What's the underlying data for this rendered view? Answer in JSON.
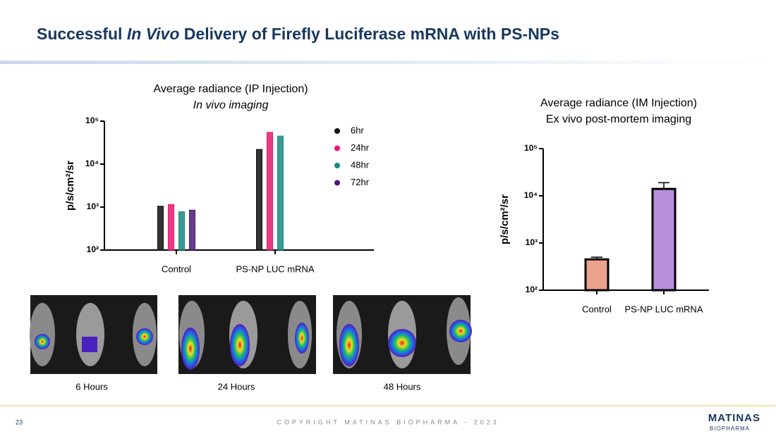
{
  "slide": {
    "title_parts": [
      "Successful ",
      "In Vivo",
      " Delivery of Firefly Luciferase mRNA with PS-NPs"
    ],
    "captions": [
      "6 Hours",
      "24 Hours",
      "48 Hours"
    ],
    "page_number": "23",
    "copyright": "COPYRIGHT MATINAS BIOPHARMA - 2023",
    "logo": "MATINAS",
    "logo_sub": "BIOPHARMA"
  },
  "chart_data": [
    {
      "type": "bar",
      "title": "Average radiance (IP Injection)",
      "subtitle": "In vivo imaging",
      "y_label": "p/s/cm²/sr",
      "log_scale": true,
      "categories": [
        "Control",
        "PS-NP LUC mRNA"
      ],
      "series": [
        {
          "name": "6hr",
          "color": "#111111",
          "values": [
            1050,
            22000
          ]
        },
        {
          "name": "24hr",
          "color": "#e8196e",
          "values": [
            1150,
            55000
          ]
        },
        {
          "name": "48hr",
          "color": "#1a8a82",
          "values": [
            780,
            45000
          ]
        },
        {
          "name": "72hr",
          "color": "#4b1a78",
          "values": [
            850,
            null
          ]
        }
      ],
      "ylim": [
        100,
        100000
      ],
      "yticks": [
        {
          "value": 100,
          "label": "10²"
        },
        {
          "value": 1000,
          "label": "10³"
        },
        {
          "value": 10000,
          "label": "10⁴"
        },
        {
          "value": 100000,
          "label": "10⁵"
        }
      ],
      "legend": "right"
    },
    {
      "type": "bar",
      "title": "Average radiance (IM Injection)",
      "subtitle": "Ex vivo post-mortem imaging",
      "y_label": "p/s/cm²/sr",
      "log_scale": true,
      "categories": [
        "Control",
        "PS-NP LUC mRNA"
      ],
      "values": [
        450,
        14000
      ],
      "errors": [
        50,
        5000
      ],
      "colors": [
        "#eda28d",
        "#b98fdc"
      ],
      "ylim": [
        100,
        100000
      ],
      "yticks": [
        {
          "value": 100,
          "label": "10²"
        },
        {
          "value": 1000,
          "label": "10³"
        },
        {
          "value": 10000,
          "label": "10⁴"
        },
        {
          "value": 100000,
          "label": "10⁵"
        }
      ]
    }
  ]
}
